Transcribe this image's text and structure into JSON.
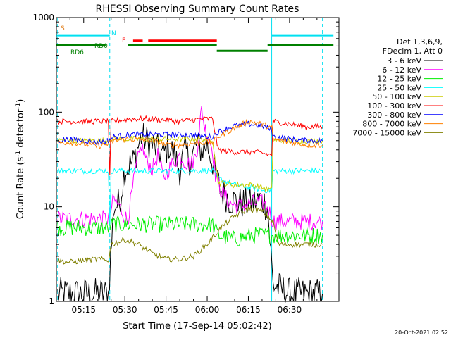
{
  "chart_data": {
    "type": "line",
    "title": "RHESSI Observing Summary Count Rates",
    "xlabel": "Start Time (17-Sep-14 05:02:42)",
    "ylabel": "Count Rate (s⁻¹ detector⁻¹)",
    "ylabel_parts": [
      "Count Rate (s",
      "-1",
      " detector",
      "-1",
      ")"
    ],
    "yscale": "log",
    "ylim": [
      1,
      1000
    ],
    "y_ticks": [
      1,
      10,
      100,
      1000
    ],
    "y_tick_labels": [
      "1",
      "10",
      "100",
      "1000"
    ],
    "xlim_minutes": [
      5.05,
      37.2
    ],
    "x_ticks": [
      {
        "min": 15,
        "label": "05:15"
      },
      {
        "min": 30,
        "label": "05:30"
      },
      {
        "min": 45,
        "label": "05:45"
      },
      {
        "min": 60,
        "label": "06:00"
      },
      {
        "min": 75,
        "label": "06:15"
      },
      {
        "min": 90,
        "label": "06:30"
      }
    ],
    "timestamp": "20-Oct-2021 02:52",
    "legend": {
      "position": "right",
      "header": [
        "Det 1,3,6,9,",
        "FDecim 1, Att 0"
      ]
    },
    "night_boundaries_min": [
      {
        "min": 5.5,
        "style": "dashed"
      },
      {
        "min": 24.5,
        "style": "dashed"
      },
      {
        "min": 83.5,
        "style": "solid"
      },
      {
        "min": 102.0,
        "style": "dashed"
      }
    ],
    "flags": [
      {
        "label": "S",
        "color": "#e08020",
        "segments": []
      },
      {
        "label": "N",
        "color": "#00e0f0",
        "segments": [
          [
            5.1,
            24.5
          ],
          [
            83.5,
            106
          ]
        ],
        "y": 650
      },
      {
        "label": "F",
        "color": "#ff0000",
        "segments": [
          [
            33,
            36.5
          ],
          [
            38.5,
            63.5
          ]
        ],
        "y": 570
      },
      {
        "label": "RD0",
        "color": "#008000",
        "segments": [
          [
            5.1,
            23
          ],
          [
            31,
            63.5
          ],
          [
            82,
            106
          ]
        ],
        "y": 510
      },
      {
        "label": "RD6",
        "color": "#008000",
        "segments": [
          [
            63.5,
            82
          ]
        ],
        "y": 445
      }
    ],
    "series": [
      {
        "name": "3 - 6 keV",
        "color": "#000000",
        "points": [
          [
            5.5,
            1.2
          ],
          [
            15,
            1.2
          ],
          [
            24,
            1.2
          ],
          [
            26,
            10
          ],
          [
            28,
            11
          ],
          [
            30,
            25
          ],
          [
            33,
            30
          ],
          [
            36,
            55
          ],
          [
            38,
            50
          ],
          [
            40,
            45
          ],
          [
            42,
            40
          ],
          [
            44,
            35
          ],
          [
            46,
            45
          ],
          [
            48,
            35
          ],
          [
            50,
            25
          ],
          [
            52,
            40
          ],
          [
            54,
            30
          ],
          [
            56,
            45
          ],
          [
            58,
            40
          ],
          [
            60,
            45
          ],
          [
            62,
            30
          ],
          [
            63,
            22
          ],
          [
            65,
            15
          ],
          [
            68,
            12
          ],
          [
            72,
            11
          ],
          [
            76,
            11
          ],
          [
            80,
            12
          ],
          [
            82,
            10
          ],
          [
            84,
            1.5
          ],
          [
            90,
            1.2
          ],
          [
            96,
            1.2
          ],
          [
            102,
            1.2
          ]
        ]
      },
      {
        "name": "6 - 12 keV",
        "color": "#ff00ff",
        "points": [
          [
            5.5,
            7.5
          ],
          [
            15,
            7.5
          ],
          [
            24,
            7.5
          ],
          [
            26,
            12
          ],
          [
            28,
            10
          ],
          [
            30,
            8
          ],
          [
            31,
            7
          ],
          [
            32,
            11
          ],
          [
            34,
            25
          ],
          [
            36,
            45
          ],
          [
            38,
            30
          ],
          [
            40,
            25
          ],
          [
            42,
            35
          ],
          [
            44,
            20
          ],
          [
            46,
            25
          ],
          [
            48,
            30
          ],
          [
            50,
            35
          ],
          [
            52,
            30
          ],
          [
            54,
            28
          ],
          [
            56,
            35
          ],
          [
            57,
            60
          ],
          [
            58,
            110
          ],
          [
            59,
            70
          ],
          [
            60,
            60
          ],
          [
            62,
            40
          ],
          [
            63,
            22
          ],
          [
            65,
            15
          ],
          [
            68,
            11
          ],
          [
            72,
            10
          ],
          [
            76,
            11
          ],
          [
            80,
            11
          ],
          [
            82,
            10
          ],
          [
            84,
            7
          ],
          [
            90,
            7
          ],
          [
            96,
            7
          ],
          [
            102,
            7
          ]
        ]
      },
      {
        "name": "12 - 25 keV",
        "color": "#00ee00",
        "points": [
          [
            5.5,
            6
          ],
          [
            15,
            6
          ],
          [
            24,
            6
          ],
          [
            26,
            6.5
          ],
          [
            32,
            6.5
          ],
          [
            40,
            6.5
          ],
          [
            50,
            6.5
          ],
          [
            58,
            6.5
          ],
          [
            62,
            6.5
          ],
          [
            64,
            5
          ],
          [
            70,
            4.5
          ],
          [
            76,
            5
          ],
          [
            80,
            5
          ],
          [
            84,
            5
          ],
          [
            90,
            5
          ],
          [
            96,
            5
          ],
          [
            102,
            5
          ]
        ]
      },
      {
        "name": "25 - 50 keV",
        "color": "#00ffff",
        "points": [
          [
            5.5,
            24
          ],
          [
            15,
            24
          ],
          [
            24,
            24
          ],
          [
            24.5,
            6
          ],
          [
            25,
            24
          ],
          [
            32,
            24
          ],
          [
            40,
            24
          ],
          [
            50,
            24
          ],
          [
            58,
            24
          ],
          [
            62,
            24
          ],
          [
            64,
            20
          ],
          [
            70,
            17
          ],
          [
            76,
            16
          ],
          [
            80,
            15
          ],
          [
            83.5,
            15
          ],
          [
            84,
            24
          ],
          [
            90,
            24
          ],
          [
            96,
            24
          ],
          [
            102,
            24
          ]
        ]
      },
      {
        "name": "50 - 100 keV",
        "color": "#cccc00",
        "points": [
          [
            5.5,
            50
          ],
          [
            15,
            50
          ],
          [
            24,
            50
          ],
          [
            26,
            52
          ],
          [
            32,
            52
          ],
          [
            40,
            52
          ],
          [
            50,
            52
          ],
          [
            58,
            52
          ],
          [
            62,
            52
          ],
          [
            64,
            18
          ],
          [
            70,
            17
          ],
          [
            76,
            17
          ],
          [
            80,
            16
          ],
          [
            83.5,
            15
          ],
          [
            84,
            50
          ],
          [
            90,
            50
          ],
          [
            96,
            50
          ],
          [
            102,
            50
          ]
        ]
      },
      {
        "name": "100 - 300 keV",
        "color": "#ff0000",
        "points": [
          [
            5.5,
            80
          ],
          [
            15,
            80
          ],
          [
            24,
            80
          ],
          [
            24.5,
            20
          ],
          [
            25,
            80
          ],
          [
            32,
            85
          ],
          [
            40,
            85
          ],
          [
            50,
            80
          ],
          [
            58,
            85
          ],
          [
            62,
            85
          ],
          [
            64,
            40
          ],
          [
            70,
            38
          ],
          [
            76,
            38
          ],
          [
            80,
            37
          ],
          [
            83.5,
            35
          ],
          [
            84,
            80
          ],
          [
            90,
            75
          ],
          [
            96,
            70
          ],
          [
            102,
            70
          ]
        ]
      },
      {
        "name": "300 - 800 keV",
        "color": "#0000ff",
        "points": [
          [
            5.5,
            50
          ],
          [
            10,
            52
          ],
          [
            15,
            50
          ],
          [
            20,
            48
          ],
          [
            24,
            50
          ],
          [
            26,
            55
          ],
          [
            32,
            58
          ],
          [
            40,
            58
          ],
          [
            50,
            58
          ],
          [
            58,
            56
          ],
          [
            62,
            55
          ],
          [
            64,
            62
          ],
          [
            70,
            72
          ],
          [
            75,
            75
          ],
          [
            80,
            72
          ],
          [
            83.5,
            65
          ],
          [
            84,
            55
          ],
          [
            90,
            52
          ],
          [
            96,
            50
          ],
          [
            102,
            50
          ]
        ]
      },
      {
        "name": "800 - 7000 keV",
        "color": "#ff8000",
        "points": [
          [
            5.5,
            47
          ],
          [
            10,
            48
          ],
          [
            15,
            46
          ],
          [
            20,
            44
          ],
          [
            24,
            46
          ],
          [
            26,
            50
          ],
          [
            32,
            52
          ],
          [
            40,
            50
          ],
          [
            45,
            45
          ],
          [
            50,
            45
          ],
          [
            58,
            48
          ],
          [
            62,
            48
          ],
          [
            64,
            55
          ],
          [
            70,
            68
          ],
          [
            75,
            80
          ],
          [
            80,
            75
          ],
          [
            83.5,
            68
          ],
          [
            84,
            52
          ],
          [
            90,
            48
          ],
          [
            96,
            45
          ],
          [
            102,
            45
          ]
        ]
      },
      {
        "name": "7000 - 15000 keV",
        "color": "#808000",
        "points": [
          [
            5.5,
            2.7
          ],
          [
            10,
            2.6
          ],
          [
            15,
            2.7
          ],
          [
            20,
            2.8
          ],
          [
            24,
            2.7
          ],
          [
            25,
            4
          ],
          [
            30,
            4.5
          ],
          [
            35,
            4
          ],
          [
            40,
            3.2
          ],
          [
            45,
            2.8
          ],
          [
            50,
            2.8
          ],
          [
            55,
            3
          ],
          [
            60,
            4
          ],
          [
            65,
            6
          ],
          [
            70,
            8
          ],
          [
            75,
            9.5
          ],
          [
            80,
            9
          ],
          [
            84,
            7
          ],
          [
            86,
            4
          ],
          [
            90,
            4
          ],
          [
            96,
            4
          ],
          [
            102,
            4
          ]
        ]
      }
    ]
  }
}
